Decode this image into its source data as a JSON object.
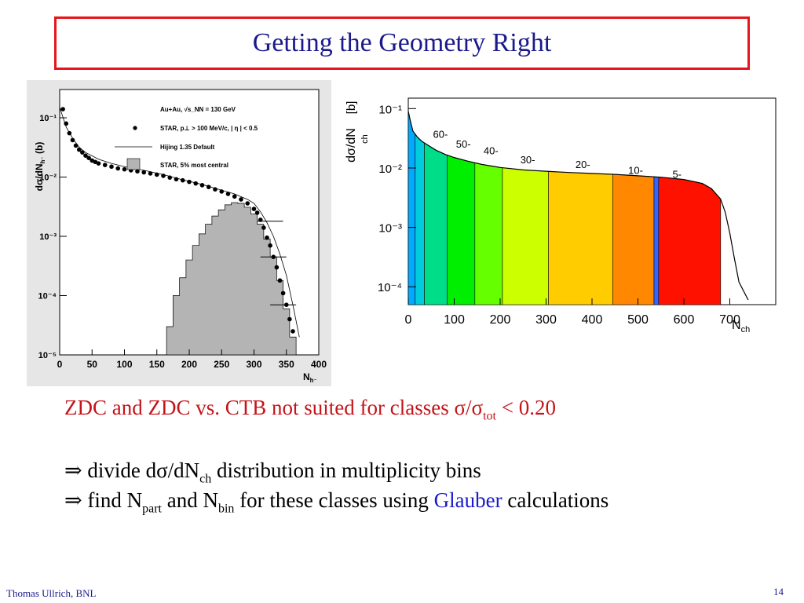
{
  "slide": {
    "title": "Getting the Geometry Right",
    "footer_author": "Thomas Ullrich, BNL",
    "page_number": "14"
  },
  "text": {
    "line1_a": "ZDC and ZDC vs. CTB not suited for classes  σ/σ",
    "line1_sub": "tot",
    "line1_b": " < 0.20",
    "line2_arrow": "⇒",
    "line2_a": " divide dσ/dN",
    "line2_sub": "ch",
    "line2_b": " distribution in multiplicity bins",
    "line3_arrow": "⇒",
    "line3_a": " find N",
    "line3_sub1": "part",
    "line3_b": " and N",
    "line3_sub2": "bin",
    "line3_c": " for these classes using ",
    "line3_glauber": "Glauber",
    "line3_d": " calculations"
  },
  "chart_data": [
    {
      "type": "scatter",
      "ylabel": "dσ/dN",
      "ylabel_sub": "h⁻",
      "ylabel_unit": "(b)",
      "xlabel": "N",
      "xlabel_sub": "h⁻",
      "xlim": [
        0,
        400
      ],
      "ylog": true,
      "ylim": [
        1e-05,
        0.3
      ],
      "x_ticks": [
        "0",
        "50",
        "100",
        "150",
        "200",
        "250",
        "300",
        "350",
        "400"
      ],
      "y_ticks": [
        "10⁻¹",
        "10⁻²",
        "10⁻³",
        "10⁻⁴",
        "10⁻⁵"
      ],
      "legend_header": "Au+Au, √s_NN = 130 GeV",
      "legend_placement": "top-right",
      "series": [
        {
          "name": "STAR, p⊥ > 100 MeV/c, | η | < 0.5",
          "kind": "points",
          "x": [
            5,
            10,
            15,
            20,
            25,
            30,
            35,
            40,
            45,
            50,
            55,
            60,
            70,
            80,
            90,
            100,
            110,
            120,
            130,
            140,
            150,
            160,
            170,
            180,
            190,
            200,
            210,
            220,
            230,
            240,
            250,
            260,
            270,
            280,
            290,
            300,
            305,
            310,
            315,
            320,
            325,
            330,
            335,
            340,
            345,
            350,
            355,
            360
          ],
          "y": [
            0.14,
            0.08,
            0.055,
            0.042,
            0.034,
            0.029,
            0.026,
            0.023,
            0.021,
            0.019,
            0.018,
            0.017,
            0.016,
            0.015,
            0.014,
            0.0135,
            0.013,
            0.0125,
            0.012,
            0.0115,
            0.011,
            0.0105,
            0.0098,
            0.0092,
            0.0088,
            0.0083,
            0.0078,
            0.0073,
            0.0068,
            0.0062,
            0.0057,
            0.0052,
            0.0047,
            0.0042,
            0.0036,
            0.0029,
            0.0025,
            0.0019,
            0.0014,
            0.00095,
            0.0007,
            0.00045,
            0.0003,
            0.00018,
            0.00011,
            7e-05,
            4e-05,
            2.5e-05
          ]
        },
        {
          "name": "Hijing 1.35 Default",
          "kind": "line",
          "x": [
            0,
            10,
            20,
            30,
            40,
            60,
            80,
            100,
            130,
            160,
            190,
            220,
            250,
            270,
            290,
            300,
            310,
            320,
            330,
            340,
            350,
            360,
            370
          ],
          "y": [
            0.15,
            0.07,
            0.045,
            0.032,
            0.026,
            0.02,
            0.017,
            0.015,
            0.013,
            0.011,
            0.009,
            0.0075,
            0.006,
            0.0052,
            0.0042,
            0.0036,
            0.0026,
            0.0017,
            0.001,
            0.0005,
            0.00022,
            7e-05,
            2e-05
          ]
        },
        {
          "name": "STAR, 5% most central",
          "kind": "histogram",
          "x": [
            160,
            170,
            180,
            190,
            200,
            210,
            220,
            230,
            240,
            250,
            260,
            270,
            280,
            290,
            300,
            310,
            320,
            330,
            340,
            350,
            360
          ],
          "y": [
            1e-05,
            3e-05,
            0.0001,
            0.0002,
            0.0004,
            0.0007,
            0.0011,
            0.0016,
            0.0022,
            0.0028,
            0.0034,
            0.0037,
            0.0036,
            0.0031,
            0.0024,
            0.0016,
            0.0009,
            0.00045,
            0.00018,
            6e-05,
            2e-05
          ]
        }
      ],
      "error_bars": [
        {
          "x": 325,
          "y": 0.0018,
          "xerr": 20
        },
        {
          "x": 330,
          "y": 0.00045,
          "xerr": 20
        },
        {
          "x": 345,
          "y": 7e-05,
          "xerr": 20
        }
      ]
    },
    {
      "type": "bar",
      "ylabel": "dσ/dN",
      "ylabel_sub": "ch",
      "ylabel_unit": "[b]",
      "xlabel": "N",
      "xlabel_sub": "ch",
      "xlim": [
        0,
        800
      ],
      "ylog": true,
      "ylim": [
        5e-05,
        0.15
      ],
      "x_ticks": [
        "0",
        "100",
        "200",
        "300",
        "400",
        "500",
        "600",
        "700"
      ],
      "y_ticks": [
        "10⁻¹",
        "10⁻²",
        "10⁻³",
        "10⁻⁴"
      ],
      "class_labels": [
        "60-",
        "50-",
        "40-",
        "30-",
        "20-",
        "10-",
        "5-"
      ],
      "class_label_x": [
        70,
        120,
        180,
        260,
        380,
        495,
        585
      ],
      "class_label_y": [
        0.032,
        0.022,
        0.017,
        0.012,
        0.01,
        0.008,
        0.0068
      ],
      "bins": [
        {
          "x0": 0,
          "x1": 15,
          "color": "#00aaff"
        },
        {
          "x0": 15,
          "x1": 35,
          "color": "#00ccdd"
        },
        {
          "x0": 35,
          "x1": 85,
          "color": "#00dd88"
        },
        {
          "x0": 85,
          "x1": 145,
          "color": "#00ee00"
        },
        {
          "x0": 145,
          "x1": 205,
          "color": "#66ff00"
        },
        {
          "x0": 205,
          "x1": 305,
          "color": "#ccff00"
        },
        {
          "x0": 305,
          "x1": 445,
          "color": "#ffcc00"
        },
        {
          "x0": 445,
          "x1": 535,
          "color": "#ff8800"
        },
        {
          "x0": 535,
          "x1": 545,
          "color": "#3366ff"
        },
        {
          "x0": 545,
          "x1": 680,
          "color": "#ff1100"
        }
      ],
      "curve_x": [
        0,
        5,
        10,
        20,
        30,
        40,
        60,
        80,
        100,
        130,
        160,
        200,
        250,
        300,
        350,
        400,
        450,
        500,
        550,
        600,
        640,
        660,
        680,
        690,
        700,
        710,
        720,
        740
      ],
      "curve_y": [
        0.09,
        0.06,
        0.042,
        0.033,
        0.028,
        0.025,
        0.02,
        0.017,
        0.015,
        0.013,
        0.0115,
        0.0102,
        0.0093,
        0.0088,
        0.0084,
        0.0081,
        0.0078,
        0.0074,
        0.007,
        0.0064,
        0.0055,
        0.0045,
        0.003,
        0.0018,
        0.0008,
        0.0003,
        0.00012,
        6e-05
      ]
    }
  ]
}
